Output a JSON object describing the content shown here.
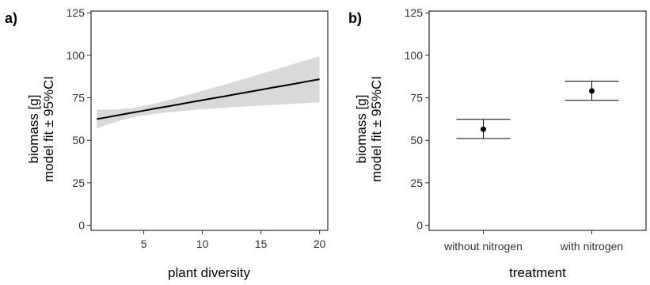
{
  "chart_data": [
    {
      "type": "line",
      "panel_label": "a)",
      "xlabel": "plant diversity",
      "ylabel_lines": [
        "biomass [g]",
        "model fit ± 95%CI"
      ],
      "xlim": [
        0.5,
        20.7
      ],
      "ylim": [
        -3,
        126
      ],
      "xticks": [
        5,
        10,
        15,
        20
      ],
      "yticks": [
        0,
        25,
        50,
        75,
        100,
        125
      ],
      "grid": false,
      "band_color": "#d9d9d9",
      "line_color": "#000000",
      "series": [
        {
          "x": [
            1,
            2,
            3,
            4,
            5,
            6,
            7,
            8,
            9,
            10,
            11,
            12,
            13,
            14,
            15,
            16,
            17,
            18,
            19,
            20
          ],
          "fit": [
            62.5,
            63.7,
            65.0,
            66.2,
            67.4,
            68.7,
            69.9,
            71.1,
            72.4,
            73.6,
            74.8,
            76.0,
            77.3,
            78.5,
            79.7,
            81.0,
            82.2,
            83.4,
            84.7,
            85.9
          ],
          "lower": [
            57.0,
            59.5,
            61.6,
            63.3,
            64.6,
            65.6,
            66.4,
            67.0,
            67.6,
            68.2,
            68.7,
            69.2,
            69.6,
            70.0,
            70.4,
            70.8,
            71.2,
            71.6,
            72.0,
            72.4
          ],
          "upper": [
            68.0,
            68.0,
            68.3,
            69.0,
            70.2,
            71.7,
            73.4,
            75.3,
            77.2,
            79.1,
            81.0,
            82.8,
            85.0,
            87.0,
            89.0,
            91.1,
            93.2,
            95.3,
            97.4,
            99.4
          ]
        }
      ]
    },
    {
      "type": "errorbar",
      "panel_label": "b)",
      "xlabel": "treatment",
      "ylabel_lines": [
        "biomass [g]",
        "model fit ± 95%CI"
      ],
      "ylim": [
        -3,
        126
      ],
      "yticks": [
        0,
        25,
        50,
        75,
        100,
        125
      ],
      "grid": false,
      "categories": [
        "without nitrogen",
        "with nitrogen"
      ],
      "estimates": [
        56.5,
        79.0
      ],
      "lower": [
        51.0,
        73.5
      ],
      "upper": [
        62.3,
        84.8
      ]
    }
  ]
}
